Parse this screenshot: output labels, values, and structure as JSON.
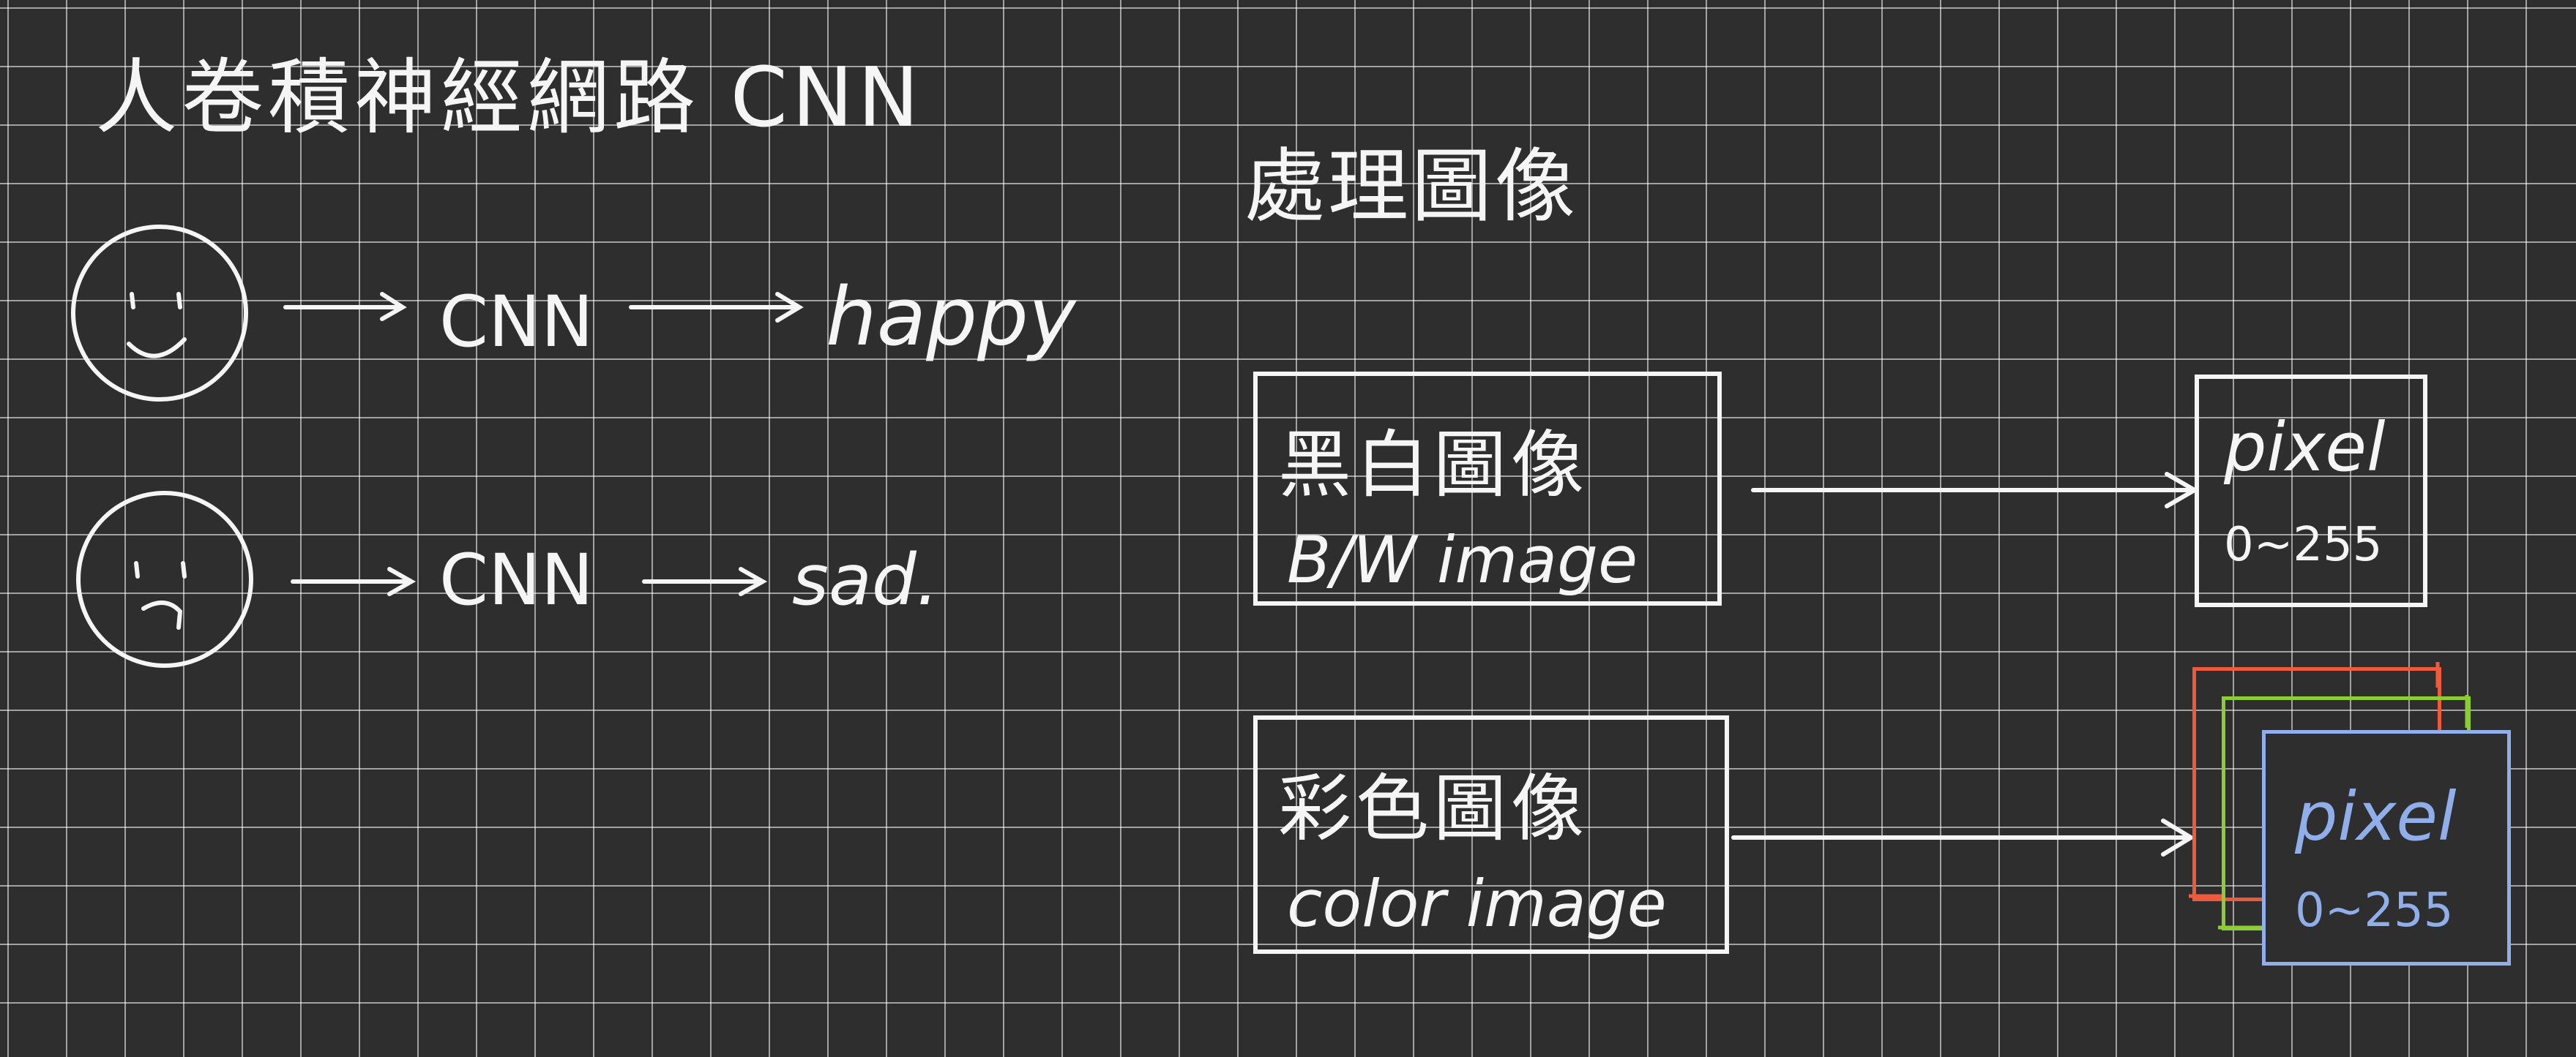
{
  "title": "人卷積神經網路 CNN",
  "examples": [
    {
      "face": "smiley",
      "model": "CNN",
      "output": "happy"
    },
    {
      "face": "frowny",
      "model": "CNN",
      "output": "sad."
    }
  ],
  "section": {
    "heading": "處理圖像",
    "bw_box": {
      "title": "黑白圖像",
      "subtitle": "B/W image"
    },
    "color_box": {
      "title": "彩色圖像",
      "subtitle": "color image"
    },
    "bw_pixel": {
      "label": "pixel",
      "range": "0~255"
    },
    "color_pixel": {
      "label": "pixel",
      "range": "0~255"
    }
  },
  "colors": {
    "ink": "#f5f5f5",
    "red_channel": "#f05a3c",
    "green_channel": "#8ccc34",
    "blue_channel": "#8faeea",
    "board": "#2e2e2e"
  }
}
